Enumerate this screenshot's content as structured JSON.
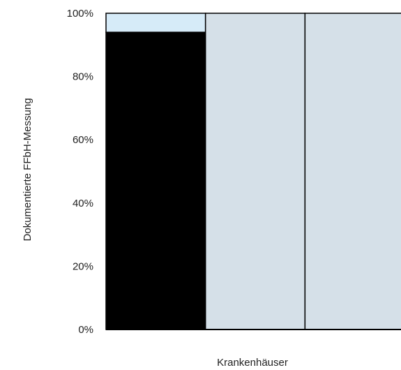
{
  "chart_data": {
    "type": "bar",
    "stacked": true,
    "percent_axis": true,
    "xlabel": "Krankenhäuser",
    "ylabel": "Dokumentierte FFbH-Messung",
    "ylim": [
      0,
      100
    ],
    "yticks": [
      "0%",
      "20%",
      "40%",
      "60%",
      "80%",
      "100%"
    ],
    "ytick_values": [
      0,
      20,
      40,
      60,
      80,
      100
    ],
    "grid": false,
    "legend": "none",
    "categories": [
      "",
      "",
      ""
    ],
    "series": [
      {
        "values": [
          94,
          0,
          0
        ],
        "color": "#000000"
      },
      {
        "values": [
          6,
          0,
          0
        ],
        "color": "#d6ebf8"
      },
      {
        "values": [
          0,
          100,
          100
        ],
        "color": "#d5e0e8"
      }
    ],
    "colors": {
      "axis": "#000000",
      "bar_outline": "#000000"
    }
  }
}
